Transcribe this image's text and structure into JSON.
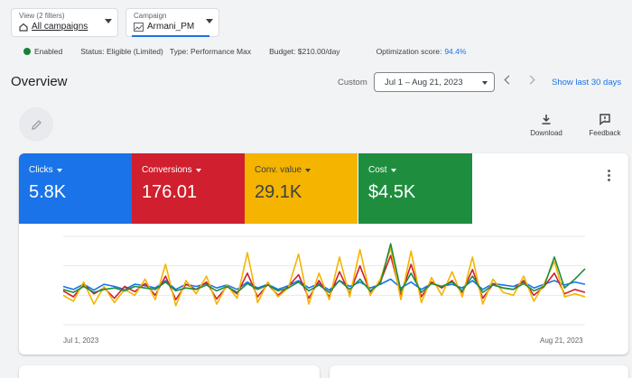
{
  "filters": {
    "view": {
      "label": "View (2 filters)",
      "value": "All campaigns"
    },
    "campaign": {
      "label": "Campaign",
      "value": "Armani_PM"
    }
  },
  "status": {
    "enabled": "Enabled",
    "status_text": "Status: Eligible (Limited)",
    "type_text": "Type: Performance Max",
    "budget_text": "Budget: $210.00/day",
    "optimization_label": "Optimization score:",
    "optimization_value": "94.4%"
  },
  "overview": {
    "title": "Overview",
    "custom_label": "Custom",
    "date_range": "Jul 1 – Aug 21, 2023",
    "show_last": "Show last 30 days",
    "download_label": "Download",
    "feedback_label": "Feedback"
  },
  "metrics": [
    {
      "label": "Clicks",
      "value": "5.8K",
      "color": "#1a73e8"
    },
    {
      "label": "Conversions",
      "value": "176.01",
      "color": "#d01f2e"
    },
    {
      "label": "Conv. value",
      "value": "29.1K",
      "color": "#f4b400"
    },
    {
      "label": "Cost",
      "value": "$4.5K",
      "color": "#1e8e3e"
    }
  ],
  "chart_data": {
    "type": "line",
    "x_start": "Jul 1, 2023",
    "x_end": "Aug 21, 2023",
    "grid": true,
    "series": [
      {
        "name": "Clicks",
        "color": "#1a73e8",
        "values": [
          52,
          48,
          55,
          47,
          55,
          52,
          48,
          55,
          53,
          50,
          60,
          48,
          55,
          52,
          56,
          50,
          54,
          48,
          58,
          50,
          55,
          48,
          53,
          60,
          50,
          56,
          47,
          60,
          52,
          58,
          50,
          55,
          62,
          50,
          58,
          48,
          56,
          52,
          55,
          50,
          60,
          48,
          56,
          54,
          52,
          58,
          50,
          55,
          60,
          54,
          58,
          55
        ]
      },
      {
        "name": "Conversions",
        "color": "#d01f2e",
        "values": [
          46,
          38,
          55,
          42,
          50,
          36,
          52,
          45,
          56,
          40,
          66,
          34,
          55,
          48,
          58,
          35,
          52,
          42,
          70,
          38,
          55,
          40,
          52,
          68,
          36,
          60,
          38,
          72,
          42,
          80,
          44,
          58,
          94,
          40,
          82,
          38,
          58,
          50,
          60,
          44,
          75,
          36,
          55,
          50,
          48,
          60,
          40,
          52,
          70,
          42,
          48,
          44
        ]
      },
      {
        "name": "Conv. value",
        "color": "#f4b400",
        "values": [
          40,
          32,
          58,
          28,
          52,
          30,
          48,
          40,
          62,
          34,
          82,
          26,
          60,
          42,
          66,
          28,
          54,
          36,
          98,
          30,
          58,
          38,
          50,
          96,
          28,
          70,
          34,
          92,
          38,
          102,
          40,
          62,
          104,
          34,
          100,
          30,
          64,
          40,
          72,
          38,
          92,
          28,
          62,
          44,
          40,
          66,
          32,
          56,
          86,
          38,
          42,
          38
        ]
      },
      {
        "name": "Cost",
        "color": "#1e8e3e",
        "values": [
          48,
          44,
          52,
          44,
          48,
          50,
          46,
          52,
          50,
          48,
          58,
          46,
          50,
          48,
          54,
          46,
          52,
          44,
          56,
          48,
          54,
          46,
          50,
          58,
          46,
          54,
          44,
          60,
          48,
          62,
          46,
          56,
          110,
          46,
          70,
          44,
          56,
          52,
          58,
          46,
          66,
          44,
          54,
          50,
          48,
          56,
          46,
          52,
          92,
          50,
          62,
          76
        ]
      }
    ]
  }
}
